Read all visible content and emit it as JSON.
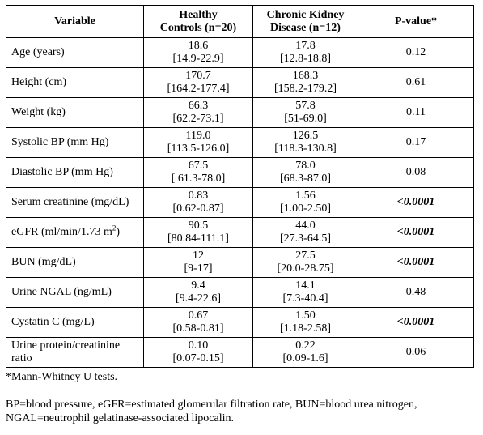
{
  "table": {
    "headers": {
      "variable": "Variable",
      "healthy_line1": "Healthy",
      "healthy_line2": "Controls (n=20)",
      "ckd_line1": "Chronic Kidney",
      "ckd_line2": "Disease (n=12)",
      "pvalue": "P-value*"
    },
    "rows": [
      {
        "variable": "Age (years)",
        "healthy_value": "18.6",
        "healthy_range": "[14.9-22.9]",
        "ckd_value": "17.8",
        "ckd_range": "[12.8-18.8]",
        "p": "0.12"
      },
      {
        "variable": "Height (cm)",
        "healthy_value": "170.7",
        "healthy_range": "[164.2-177.4]",
        "ckd_value": "168.3",
        "ckd_range": "[158.2-179.2]",
        "p": "0.61"
      },
      {
        "variable": "Weight (kg)",
        "healthy_value": "66.3",
        "healthy_range": "[62.2-73.1]",
        "ckd_value": "57.8",
        "ckd_range": "[51-69.0]",
        "p": "0.11"
      },
      {
        "variable": "Systolic BP (mm Hg)",
        "healthy_value": "119.0",
        "healthy_range": "[113.5-126.0]",
        "ckd_value": "126.5",
        "ckd_range": "[118.3-130.8]",
        "p": "0.17"
      },
      {
        "variable": "Diastolic BP (mm Hg)",
        "healthy_value": "67.5",
        "healthy_range": "[ 61.3-78.0]",
        "ckd_value": "78.0",
        "ckd_range": "[68.3-87.0]",
        "p": "0.08"
      },
      {
        "variable": "Serum creatinine (mg/dL)",
        "healthy_value": "0.83",
        "healthy_range": "[0.62-0.87]",
        "ckd_value": "1.56",
        "ckd_range": "[1.00-2.50]",
        "p": "<0.0001"
      },
      {
        "variable_prefix": "eGFR (ml/min/1.73 m",
        "variable_sup": "2",
        "variable_suffix": ")",
        "healthy_value": "90.5",
        "healthy_range": "[80.84-111.1]",
        "ckd_value": "44.0",
        "ckd_range": "[27.3-64.5]",
        "p": "<0.0001"
      },
      {
        "variable": "BUN (mg/dL)",
        "healthy_value": "12",
        "healthy_range": "[9-17]",
        "ckd_value": "27.5",
        "ckd_range": "[20.0-28.75]",
        "p": "<0.0001"
      },
      {
        "variable": "Urine NGAL (ng/mL)",
        "healthy_value": "9.4",
        "healthy_range": "[9.4-22.6]",
        "ckd_value": "14.1",
        "ckd_range": "[7.3-40.4]",
        "p": "0.48"
      },
      {
        "variable": "Cystatin C (mg/L)",
        "healthy_value": "0.67",
        "healthy_range": "[0.58-0.81]",
        "ckd_value": "1.50",
        "ckd_range": "[1.18-2.58]",
        "p": "<0.0001"
      },
      {
        "variable": "Urine protein/creatinine ratio",
        "healthy_value": "0.10",
        "healthy_range": "[0.07-0.15]",
        "ckd_value": "0.22",
        "ckd_range": "[0.09-1.6]",
        "p": "0.06"
      }
    ]
  },
  "footnote": "*Mann-Whitney U tests.",
  "abbreviations": "BP=blood pressure, eGFR=estimated glomerular filtration rate, BUN=blood urea nitrogen, NGAL=neutrophil gelatinase-associated lipocalin."
}
